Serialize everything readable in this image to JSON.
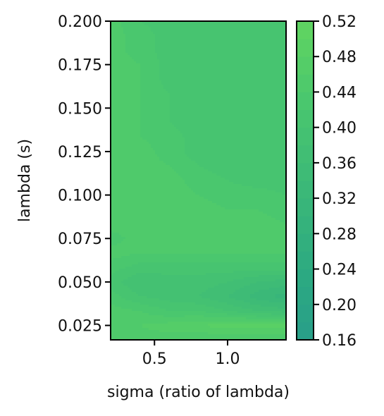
{
  "chart_data": {
    "type": "heatmap",
    "subtype": "filled-contour",
    "title": "",
    "xlabel": "sigma (ratio of lambda)",
    "ylabel": "lambda (s)",
    "xlim": [
      0.2,
      1.4
    ],
    "ylim": [
      0.0167,
      0.2
    ],
    "xticks": [
      0.5,
      1.0
    ],
    "xtick_labels": [
      "0.5",
      "1.0"
    ],
    "yticks": [
      0.025,
      0.05,
      0.075,
      0.1,
      0.125,
      0.15,
      0.175,
      0.2
    ],
    "ytick_labels": [
      "0.025",
      "0.050",
      "0.075",
      "0.100",
      "0.125",
      "0.150",
      "0.175",
      "0.200"
    ],
    "colorbar": {
      "levels": [
        0.16,
        0.18,
        0.2,
        0.22,
        0.24,
        0.26,
        0.28,
        0.3,
        0.32,
        0.34,
        0.36,
        0.38,
        0.4,
        0.42,
        0.44,
        0.46,
        0.48,
        0.5,
        0.52
      ],
      "tick_values": [
        0.16,
        0.2,
        0.24,
        0.28,
        0.32,
        0.36,
        0.4,
        0.44,
        0.48,
        0.52
      ],
      "tick_labels": [
        "0.16",
        "0.20",
        "0.24",
        "0.28",
        "0.32",
        "0.36",
        "0.40",
        "0.44",
        "0.48",
        "0.52"
      ],
      "colors": [
        "#29a088",
        "#2aa386",
        "#2ba684",
        "#2ca982",
        "#2fac80",
        "#32af7e",
        "#35b27c",
        "#38b57a",
        "#3bb878",
        "#3ebb76",
        "#41be74",
        "#44c172",
        "#47c470",
        "#4ac76e",
        "#4fca6b",
        "#54cd68",
        "#59d065",
        "#5ed362"
      ]
    },
    "x": [
      0.2,
      0.4,
      0.6,
      0.8,
      1.0,
      1.2,
      1.4
    ],
    "y": [
      0.0167,
      0.025,
      0.0333,
      0.0417,
      0.05,
      0.0583,
      0.0667,
      0.075,
      0.0833,
      0.0917,
      0.1,
      0.1083,
      0.1167,
      0.125,
      0.1333,
      0.1417,
      0.15,
      0.1583,
      0.1667,
      0.175,
      0.1833,
      0.1917,
      0.2
    ],
    "z": [
      [
        0.45,
        0.45,
        0.45,
        0.44,
        0.44,
        0.44,
        0.44
      ],
      [
        0.45,
        0.46,
        0.47,
        0.48,
        0.49,
        0.49,
        0.49
      ],
      [
        0.45,
        0.44,
        0.42,
        0.42,
        0.4,
        0.38,
        0.37
      ],
      [
        0.43,
        0.4,
        0.39,
        0.38,
        0.36,
        0.33,
        0.31
      ],
      [
        0.41,
        0.38,
        0.39,
        0.39,
        0.38,
        0.36,
        0.35
      ],
      [
        0.43,
        0.41,
        0.41,
        0.41,
        0.41,
        0.41,
        0.41
      ],
      [
        0.45,
        0.44,
        0.44,
        0.44,
        0.44,
        0.44,
        0.44
      ],
      [
        0.43,
        0.45,
        0.45,
        0.45,
        0.45,
        0.45,
        0.45
      ],
      [
        0.45,
        0.45,
        0.45,
        0.45,
        0.45,
        0.45,
        0.44
      ],
      [
        0.45,
        0.45,
        0.45,
        0.45,
        0.44,
        0.44,
        0.43
      ],
      [
        0.45,
        0.45,
        0.45,
        0.44,
        0.43,
        0.43,
        0.42
      ],
      [
        0.45,
        0.45,
        0.45,
        0.43,
        0.42,
        0.41,
        0.41
      ],
      [
        0.45,
        0.45,
        0.44,
        0.42,
        0.41,
        0.41,
        0.41
      ],
      [
        0.45,
        0.45,
        0.43,
        0.41,
        0.41,
        0.41,
        0.41
      ],
      [
        0.45,
        0.44,
        0.43,
        0.41,
        0.41,
        0.41,
        0.41
      ],
      [
        0.45,
        0.44,
        0.42,
        0.41,
        0.41,
        0.41,
        0.41
      ],
      [
        0.45,
        0.44,
        0.42,
        0.41,
        0.41,
        0.41,
        0.41
      ],
      [
        0.45,
        0.44,
        0.42,
        0.41,
        0.41,
        0.41,
        0.41
      ],
      [
        0.45,
        0.44,
        0.41,
        0.41,
        0.41,
        0.41,
        0.41
      ],
      [
        0.45,
        0.44,
        0.41,
        0.41,
        0.41,
        0.41,
        0.41
      ],
      [
        0.45,
        0.43,
        0.41,
        0.41,
        0.41,
        0.41,
        0.41
      ],
      [
        0.45,
        0.43,
        0.41,
        0.41,
        0.41,
        0.41,
        0.41
      ],
      [
        0.45,
        0.42,
        0.41,
        0.41,
        0.41,
        0.41,
        0.41
      ]
    ]
  }
}
